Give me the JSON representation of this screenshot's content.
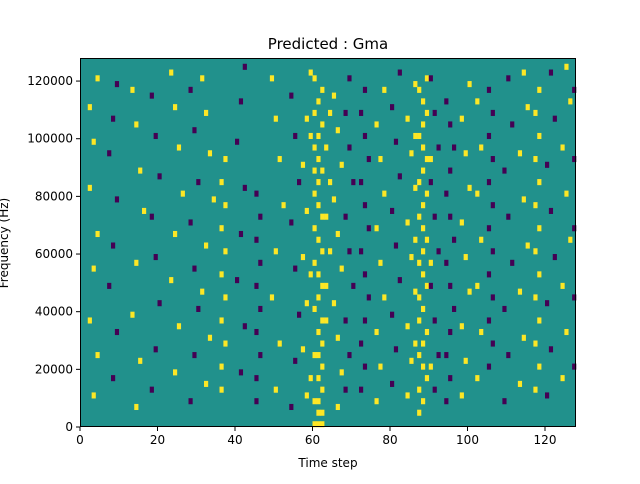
{
  "chart_data": {
    "type": "heatmap",
    "title": "Predicted : Gma",
    "xlabel": "Time step",
    "ylabel": "Frequency (Hz)",
    "xlim": [
      0,
      128
    ],
    "ylim": [
      0,
      128000
    ],
    "x_ticks": [
      0,
      20,
      40,
      60,
      80,
      100,
      120
    ],
    "y_ticks": [
      0,
      20000,
      40000,
      60000,
      80000,
      100000,
      120000
    ],
    "colormap": "viridis",
    "colors": {
      "low": "#440154",
      "mid": "#21918c",
      "high": "#fde725"
    },
    "grid_shape": {
      "time_steps": 128,
      "frequency_bins": 64,
      "bin_width_hz": 2000
    },
    "background_value": 0,
    "cells": [
      [
        60,
        0,
        1
      ],
      [
        61,
        0,
        1
      ],
      [
        62,
        0,
        1
      ],
      [
        61,
        2,
        1
      ],
      [
        62,
        2,
        1
      ],
      [
        60,
        4,
        1
      ],
      [
        61,
        4,
        1
      ],
      [
        62,
        6,
        1
      ],
      [
        61,
        8,
        1
      ],
      [
        62,
        10,
        1
      ],
      [
        60,
        12,
        1
      ],
      [
        61,
        12,
        1
      ],
      [
        62,
        14,
        1
      ],
      [
        61,
        16,
        1
      ],
      [
        62,
        18,
        1
      ],
      [
        60,
        20,
        1
      ],
      [
        61,
        22,
        1
      ],
      [
        62,
        24,
        1
      ],
      [
        61,
        26,
        1
      ],
      [
        60,
        28,
        1
      ],
      [
        62,
        30,
        1
      ],
      [
        61,
        32,
        1
      ],
      [
        60,
        34,
        1
      ],
      [
        62,
        36,
        1
      ],
      [
        61,
        38,
        1
      ],
      [
        60,
        40,
        1
      ],
      [
        61,
        42,
        1
      ],
      [
        62,
        44,
        1
      ],
      [
        61,
        46,
        1
      ],
      [
        60,
        48,
        1
      ],
      [
        61,
        50,
        1
      ],
      [
        62,
        52,
        1
      ],
      [
        60,
        54,
        1
      ],
      [
        61,
        56,
        1
      ],
      [
        62,
        58,
        1
      ],
      [
        60,
        60,
        1
      ],
      [
        87,
        2,
        1
      ],
      [
        88,
        4,
        1
      ],
      [
        87,
        6,
        1
      ],
      [
        89,
        8,
        1
      ],
      [
        88,
        10,
        1
      ],
      [
        87,
        12,
        1
      ],
      [
        88,
        14,
        1
      ],
      [
        89,
        16,
        1
      ],
      [
        87,
        18,
        1
      ],
      [
        88,
        20,
        1
      ],
      [
        87,
        22,
        1
      ],
      [
        89,
        24,
        1
      ],
      [
        88,
        26,
        1
      ],
      [
        87,
        28,
        1
      ],
      [
        88,
        30,
        1
      ],
      [
        89,
        32,
        1
      ],
      [
        88,
        34,
        1
      ],
      [
        87,
        36,
        1
      ],
      [
        88,
        38,
        1
      ],
      [
        89,
        40,
        1
      ],
      [
        87,
        42,
        1
      ],
      [
        88,
        44,
        1
      ],
      [
        89,
        46,
        1
      ],
      [
        88,
        48,
        1
      ],
      [
        87,
        50,
        1
      ],
      [
        88,
        52,
        1
      ],
      [
        89,
        54,
        1
      ],
      [
        88,
        56,
        1
      ],
      [
        87,
        58,
        1
      ],
      [
        89,
        60,
        1
      ],
      [
        72,
        6,
        -1
      ],
      [
        73,
        10,
        -1
      ],
      [
        72,
        14,
        -1
      ],
      [
        73,
        18,
        -1
      ],
      [
        74,
        22,
        -1
      ],
      [
        73,
        26,
        -1
      ],
      [
        72,
        30,
        -1
      ],
      [
        74,
        34,
        -1
      ],
      [
        73,
        38,
        -1
      ],
      [
        72,
        42,
        -1
      ],
      [
        74,
        46,
        -1
      ],
      [
        73,
        50,
        -1
      ],
      [
        72,
        54,
        -1
      ],
      [
        73,
        58,
        -1
      ],
      [
        94,
        4,
        -1
      ],
      [
        95,
        8,
        -1
      ],
      [
        94,
        12,
        -1
      ],
      [
        95,
        16,
        -1
      ],
      [
        96,
        20,
        -1
      ],
      [
        95,
        24,
        -1
      ],
      [
        94,
        28,
        -1
      ],
      [
        96,
        32,
        -1
      ],
      [
        95,
        36,
        -1
      ],
      [
        94,
        40,
        -1
      ],
      [
        95,
        44,
        -1
      ],
      [
        96,
        48,
        -1
      ],
      [
        95,
        52,
        -1
      ],
      [
        94,
        56,
        -1
      ],
      [
        105,
        10,
        -1
      ],
      [
        106,
        14,
        -1
      ],
      [
        105,
        18,
        -1
      ],
      [
        106,
        22,
        -1
      ],
      [
        105,
        26,
        -1
      ],
      [
        106,
        30,
        -1
      ],
      [
        105,
        34,
        -1
      ],
      [
        106,
        38,
        -1
      ],
      [
        105,
        42,
        -1
      ],
      [
        106,
        46,
        -1
      ],
      [
        105,
        50,
        -1
      ],
      [
        106,
        54,
        -1
      ],
      [
        105,
        58,
        -1
      ],
      [
        117,
        6,
        1
      ],
      [
        118,
        10,
        1
      ],
      [
        117,
        14,
        1
      ],
      [
        118,
        18,
        1
      ],
      [
        117,
        22,
        1
      ],
      [
        118,
        26,
        1
      ],
      [
        117,
        30,
        1
      ],
      [
        118,
        34,
        1
      ],
      [
        117,
        38,
        1
      ],
      [
        118,
        42,
        1
      ],
      [
        117,
        46,
        1
      ],
      [
        118,
        50,
        1
      ],
      [
        117,
        54,
        1
      ],
      [
        118,
        58,
        1
      ],
      [
        36,
        6,
        1
      ],
      [
        36,
        10,
        1
      ],
      [
        37,
        14,
        1
      ],
      [
        36,
        18,
        1
      ],
      [
        37,
        22,
        1
      ],
      [
        36,
        26,
        1
      ],
      [
        37,
        30,
        1
      ],
      [
        36,
        34,
        1
      ],
      [
        37,
        38,
        1
      ],
      [
        36,
        42,
        1
      ],
      [
        37,
        46,
        1
      ],
      [
        45,
        4,
        -1
      ],
      [
        45,
        8,
        -1
      ],
      [
        46,
        12,
        -1
      ],
      [
        45,
        16,
        -1
      ],
      [
        46,
        20,
        -1
      ],
      [
        45,
        24,
        -1
      ],
      [
        46,
        28,
        -1
      ],
      [
        45,
        32,
        -1
      ],
      [
        46,
        36,
        -1
      ],
      [
        45,
        40,
        -1
      ],
      [
        3,
        5,
        1
      ],
      [
        4,
        12,
        1
      ],
      [
        2,
        18,
        1
      ],
      [
        3,
        27,
        1
      ],
      [
        4,
        33,
        1
      ],
      [
        2,
        41,
        1
      ],
      [
        3,
        49,
        1
      ],
      [
        2,
        55,
        1
      ],
      [
        4,
        60,
        1
      ],
      [
        8,
        8,
        -1
      ],
      [
        9,
        16,
        -1
      ],
      [
        7,
        24,
        -1
      ],
      [
        8,
        31,
        -1
      ],
      [
        9,
        39,
        -1
      ],
      [
        7,
        47,
        -1
      ],
      [
        8,
        53,
        -1
      ],
      [
        9,
        59,
        -1
      ],
      [
        14,
        3,
        1
      ],
      [
        15,
        11,
        1
      ],
      [
        13,
        19,
        1
      ],
      [
        14,
        28,
        1
      ],
      [
        16,
        37,
        1
      ],
      [
        15,
        44,
        1
      ],
      [
        14,
        52,
        1
      ],
      [
        13,
        58,
        1
      ],
      [
        18,
        6,
        -1
      ],
      [
        19,
        13,
        -1
      ],
      [
        20,
        21,
        -1
      ],
      [
        19,
        29,
        -1
      ],
      [
        18,
        36,
        -1
      ],
      [
        20,
        43,
        -1
      ],
      [
        19,
        50,
        -1
      ],
      [
        18,
        57,
        -1
      ],
      [
        24,
        9,
        1
      ],
      [
        25,
        17,
        1
      ],
      [
        23,
        25,
        1
      ],
      [
        24,
        33,
        1
      ],
      [
        26,
        40,
        1
      ],
      [
        25,
        48,
        1
      ],
      [
        24,
        55,
        1
      ],
      [
        23,
        61,
        1
      ],
      [
        28,
        4,
        -1
      ],
      [
        29,
        12,
        -1
      ],
      [
        30,
        20,
        -1
      ],
      [
        29,
        27,
        -1
      ],
      [
        28,
        35,
        -1
      ],
      [
        30,
        42,
        -1
      ],
      [
        29,
        51,
        -1
      ],
      [
        28,
        58,
        -1
      ],
      [
        32,
        7,
        1
      ],
      [
        33,
        15,
        1
      ],
      [
        31,
        23,
        1
      ],
      [
        32,
        31,
        1
      ],
      [
        34,
        39,
        1
      ],
      [
        33,
        47,
        1
      ],
      [
        32,
        54,
        1
      ],
      [
        31,
        60,
        1
      ],
      [
        41,
        9,
        -1
      ],
      [
        42,
        17,
        -1
      ],
      [
        40,
        25,
        -1
      ],
      [
        41,
        33,
        -1
      ],
      [
        42,
        41,
        -1
      ],
      [
        40,
        49,
        -1
      ],
      [
        41,
        56,
        -1
      ],
      [
        42,
        62,
        -1
      ],
      [
        50,
        6,
        1
      ],
      [
        51,
        14,
        1
      ],
      [
        49,
        22,
        1
      ],
      [
        50,
        30,
        1
      ],
      [
        52,
        38,
        1
      ],
      [
        51,
        46,
        1
      ],
      [
        50,
        53,
        1
      ],
      [
        49,
        60,
        1
      ],
      [
        54,
        3,
        -1
      ],
      [
        55,
        11,
        -1
      ],
      [
        56,
        19,
        -1
      ],
      [
        55,
        27,
        -1
      ],
      [
        54,
        35,
        -1
      ],
      [
        56,
        42,
        -1
      ],
      [
        55,
        50,
        -1
      ],
      [
        54,
        57,
        -1
      ],
      [
        58,
        5,
        1
      ],
      [
        57,
        13,
        1
      ],
      [
        58,
        21,
        1
      ],
      [
        57,
        29,
        1
      ],
      [
        58,
        37,
        1
      ],
      [
        57,
        45,
        1
      ],
      [
        58,
        53,
        1
      ],
      [
        59,
        61,
        1
      ],
      [
        66,
        3,
        1
      ],
      [
        67,
        9,
        1
      ],
      [
        66,
        15,
        1
      ],
      [
        65,
        21,
        1
      ],
      [
        67,
        27,
        1
      ],
      [
        66,
        33,
        1
      ],
      [
        65,
        39,
        1
      ],
      [
        67,
        45,
        1
      ],
      [
        66,
        51,
        1
      ],
      [
        65,
        57,
        1
      ],
      [
        68,
        6,
        -1
      ],
      [
        69,
        12,
        -1
      ],
      [
        68,
        18,
        -1
      ],
      [
        70,
        24,
        -1
      ],
      [
        69,
        30,
        -1
      ],
      [
        68,
        36,
        -1
      ],
      [
        70,
        42,
        -1
      ],
      [
        69,
        48,
        -1
      ],
      [
        68,
        54,
        -1
      ],
      [
        69,
        60,
        -1
      ],
      [
        76,
        4,
        1
      ],
      [
        77,
        10,
        1
      ],
      [
        76,
        16,
        1
      ],
      [
        78,
        22,
        1
      ],
      [
        77,
        28,
        1
      ],
      [
        76,
        34,
        1
      ],
      [
        78,
        40,
        1
      ],
      [
        77,
        46,
        1
      ],
      [
        76,
        52,
        1
      ],
      [
        78,
        58,
        1
      ],
      [
        80,
        7,
        -1
      ],
      [
        81,
        13,
        -1
      ],
      [
        80,
        19,
        -1
      ],
      [
        82,
        25,
        -1
      ],
      [
        81,
        31,
        -1
      ],
      [
        80,
        37,
        -1
      ],
      [
        82,
        43,
        -1
      ],
      [
        81,
        49,
        -1
      ],
      [
        80,
        55,
        -1
      ],
      [
        82,
        61,
        -1
      ],
      [
        84,
        5,
        1
      ],
      [
        85,
        11,
        1
      ],
      [
        84,
        17,
        1
      ],
      [
        86,
        23,
        1
      ],
      [
        85,
        29,
        1
      ],
      [
        84,
        35,
        1
      ],
      [
        86,
        41,
        1
      ],
      [
        85,
        47,
        1
      ],
      [
        84,
        53,
        1
      ],
      [
        86,
        59,
        1
      ],
      [
        91,
        6,
        -1
      ],
      [
        92,
        12,
        -1
      ],
      [
        91,
        18,
        -1
      ],
      [
        90,
        24,
        -1
      ],
      [
        92,
        30,
        -1
      ],
      [
        91,
        36,
        -1
      ],
      [
        90,
        42,
        -1
      ],
      [
        92,
        48,
        -1
      ],
      [
        91,
        54,
        -1
      ],
      [
        90,
        60,
        -1
      ],
      [
        98,
        5,
        1
      ],
      [
        99,
        11,
        1
      ],
      [
        98,
        17,
        1
      ],
      [
        100,
        23,
        1
      ],
      [
        99,
        29,
        1
      ],
      [
        98,
        35,
        1
      ],
      [
        100,
        41,
        1
      ],
      [
        99,
        47,
        1
      ],
      [
        98,
        53,
        1
      ],
      [
        100,
        59,
        1
      ],
      [
        102,
        8,
        1
      ],
      [
        103,
        16,
        1
      ],
      [
        102,
        24,
        1
      ],
      [
        103,
        32,
        1
      ],
      [
        102,
        40,
        1
      ],
      [
        103,
        48,
        1
      ],
      [
        102,
        56,
        1
      ],
      [
        109,
        4,
        -1
      ],
      [
        110,
        12,
        -1
      ],
      [
        109,
        20,
        -1
      ],
      [
        111,
        28,
        -1
      ],
      [
        110,
        36,
        -1
      ],
      [
        109,
        44,
        -1
      ],
      [
        111,
        52,
        -1
      ],
      [
        110,
        60,
        -1
      ],
      [
        113,
        7,
        1
      ],
      [
        114,
        15,
        1
      ],
      [
        113,
        23,
        1
      ],
      [
        115,
        31,
        1
      ],
      [
        114,
        39,
        1
      ],
      [
        113,
        47,
        1
      ],
      [
        115,
        55,
        1
      ],
      [
        114,
        61,
        1
      ],
      [
        120,
        5,
        -1
      ],
      [
        121,
        13,
        -1
      ],
      [
        120,
        21,
        -1
      ],
      [
        122,
        29,
        -1
      ],
      [
        121,
        37,
        -1
      ],
      [
        120,
        45,
        -1
      ],
      [
        122,
        53,
        -1
      ],
      [
        121,
        61,
        -1
      ],
      [
        124,
        8,
        1
      ],
      [
        125,
        16,
        1
      ],
      [
        124,
        24,
        1
      ],
      [
        126,
        32,
        1
      ],
      [
        125,
        40,
        1
      ],
      [
        124,
        48,
        1
      ],
      [
        126,
        56,
        1
      ],
      [
        125,
        62,
        1
      ],
      [
        127,
        10,
        -1
      ],
      [
        127,
        22,
        -1
      ],
      [
        127,
        34,
        -1
      ],
      [
        127,
        46,
        -1
      ],
      [
        127,
        58,
        -1
      ],
      [
        63,
        18,
        1
      ],
      [
        63,
        24,
        1
      ],
      [
        64,
        30,
        1
      ],
      [
        63,
        36,
        1
      ],
      [
        64,
        42,
        1
      ],
      [
        63,
        48,
        1
      ],
      [
        64,
        54,
        1
      ],
      [
        59,
        8,
        1
      ],
      [
        59,
        26,
        1
      ],
      [
        60,
        44,
        1
      ],
      [
        59,
        50,
        1
      ],
      [
        90,
        10,
        1
      ],
      [
        90,
        28,
        1
      ],
      [
        90,
        46,
        1
      ],
      [
        86,
        14,
        1
      ],
      [
        86,
        32,
        1
      ],
      [
        86,
        50,
        1
      ]
    ],
    "grid": false,
    "legend": false
  }
}
